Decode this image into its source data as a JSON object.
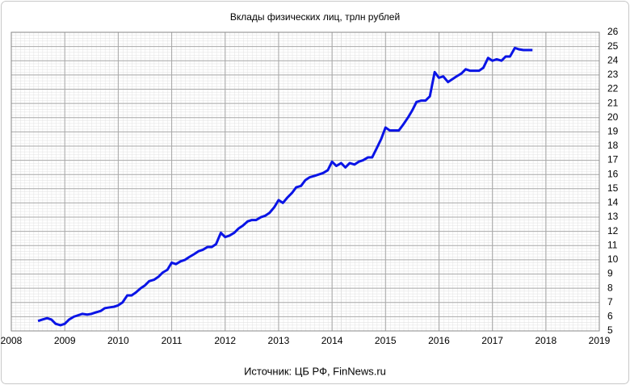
{
  "chart_data": {
    "type": "line",
    "title": "Вклады физических лиц, трлн рублей",
    "source": "Источник: ЦБ РФ, FinNews.ru",
    "color": "#0a14e6",
    "grid": true,
    "x": [
      2008.5,
      2008.58,
      2008.67,
      2008.75,
      2008.83,
      2008.92,
      2009,
      2009.08,
      2009.17,
      2009.25,
      2009.33,
      2009.42,
      2009.5,
      2009.58,
      2009.67,
      2009.75,
      2009.83,
      2009.92,
      2010,
      2010.08,
      2010.17,
      2010.25,
      2010.33,
      2010.42,
      2010.5,
      2010.58,
      2010.67,
      2010.75,
      2010.83,
      2010.92,
      2011,
      2011.08,
      2011.17,
      2011.25,
      2011.33,
      2011.42,
      2011.5,
      2011.58,
      2011.67,
      2011.75,
      2011.83,
      2011.92,
      2012,
      2012.08,
      2012.17,
      2012.25,
      2012.33,
      2012.42,
      2012.5,
      2012.58,
      2012.67,
      2012.75,
      2012.83,
      2012.92,
      2013,
      2013.08,
      2013.17,
      2013.25,
      2013.33,
      2013.42,
      2013.5,
      2013.58,
      2013.67,
      2013.75,
      2013.83,
      2013.92,
      2014,
      2014.08,
      2014.17,
      2014.25,
      2014.33,
      2014.42,
      2014.5,
      2014.58,
      2014.67,
      2014.75,
      2014.83,
      2014.92,
      2015,
      2015.08,
      2015.17,
      2015.25,
      2015.33,
      2015.42,
      2015.5,
      2015.58,
      2015.67,
      2015.75,
      2015.83,
      2015.92,
      2016,
      2016.08,
      2016.17,
      2016.25,
      2016.33,
      2016.42,
      2016.5,
      2016.58,
      2016.67,
      2016.75,
      2016.83,
      2016.92,
      2017,
      2017.08,
      2017.17,
      2017.25,
      2017.33,
      2017.42,
      2017.5,
      2017.58,
      2017.67,
      2017.75
    ],
    "values": [
      5.7,
      5.8,
      5.9,
      5.8,
      5.5,
      5.4,
      5.5,
      5.8,
      6.0,
      6.1,
      6.2,
      6.15,
      6.2,
      6.3,
      6.4,
      6.6,
      6.65,
      6.7,
      6.8,
      7.0,
      7.5,
      7.5,
      7.7,
      8.0,
      8.2,
      8.5,
      8.6,
      8.8,
      9.1,
      9.3,
      9.8,
      9.7,
      9.9,
      10.0,
      10.2,
      10.4,
      10.6,
      10.7,
      10.9,
      10.9,
      11.1,
      11.9,
      11.6,
      11.7,
      11.9,
      12.2,
      12.4,
      12.7,
      12.8,
      12.8,
      13.0,
      13.1,
      13.3,
      13.7,
      14.2,
      14.0,
      14.4,
      14.7,
      15.1,
      15.2,
      15.6,
      15.8,
      15.9,
      16.0,
      16.1,
      16.3,
      16.9,
      16.6,
      16.8,
      16.5,
      16.8,
      16.7,
      16.9,
      17.0,
      17.2,
      17.2,
      17.8,
      18.5,
      19.3,
      19.1,
      19.1,
      19.1,
      19.5,
      20.0,
      20.5,
      21.1,
      21.2,
      21.2,
      21.5,
      23.2,
      22.8,
      22.9,
      22.5,
      22.7,
      22.9,
      23.1,
      23.4,
      23.3,
      23.3,
      23.3,
      23.5,
      24.2,
      24.0,
      24.1,
      24.0,
      24.3,
      24.3,
      24.9,
      24.8,
      24.75,
      24.75,
      24.75
    ],
    "xlim": [
      2008,
      2019
    ],
    "xticks": [
      2008,
      2009,
      2010,
      2011,
      2012,
      2013,
      2014,
      2015,
      2016,
      2017,
      2018,
      2019
    ],
    "ylim": [
      5,
      26
    ],
    "yticks": [
      5,
      6,
      7,
      8,
      9,
      10,
      11,
      12,
      13,
      14,
      15,
      16,
      17,
      18,
      19,
      20,
      21,
      22,
      23,
      24,
      25,
      26
    ]
  }
}
